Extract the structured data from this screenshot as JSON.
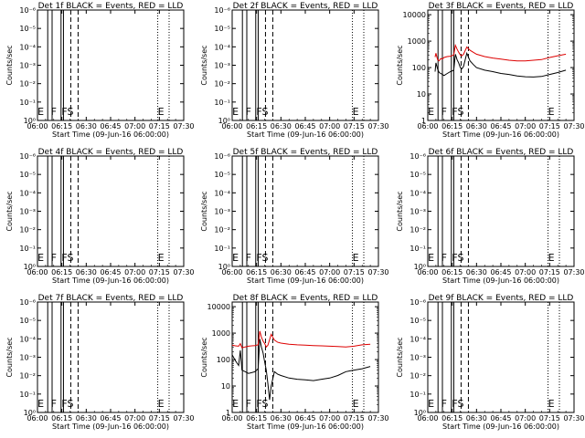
{
  "chart_data": [
    {
      "type": "line",
      "title": "Det 1f BLACK = Events, RED = LLD",
      "ylabel": "Counts/sec",
      "xlabel": "Start Time (09-Jun-16 06:00:00)",
      "x_ticks": [
        "06:00",
        "06:15",
        "06:30",
        "06:45",
        "07:00",
        "07:15",
        "07:30"
      ],
      "y_ticks": [
        "10⁰",
        "10⁻¹",
        "10⁻²",
        "10⁻³",
        "10⁻⁴",
        "10⁻⁵",
        "10⁻⁶"
      ],
      "ylim": [
        1e-06,
        1
      ],
      "log_y": true,
      "markers": {
        "solid": [
          6.3,
          9.0,
          14.5,
          16.0
        ],
        "dashed": [
          20.5,
          25.0
        ],
        "dotted": [
          74.0,
          81.0
        ]
      },
      "marker_labels": [
        {
          "text": "E",
          "x": 2.0
        },
        {
          "text": "F",
          "x": 10.0
        },
        {
          "text": "FS",
          "x": 18.5
        },
        {
          "text": "E",
          "x": 76.0
        }
      ],
      "series": []
    },
    {
      "type": "line",
      "title": "Det 2f BLACK = Events, RED = LLD",
      "ylabel": "Counts/sec",
      "xlabel": "Start Time (09-Jun-16 06:00:00)",
      "x_ticks": [
        "06:00",
        "06:15",
        "06:30",
        "06:45",
        "07:00",
        "07:15",
        "07:30"
      ],
      "y_ticks": [
        "10⁰",
        "10⁻¹",
        "10⁻²",
        "10⁻³",
        "10⁻⁴",
        "10⁻⁵",
        "10⁻⁶"
      ],
      "ylim": [
        1e-06,
        1
      ],
      "log_y": true,
      "markers": {
        "solid": [
          6.3,
          9.0,
          14.5,
          16.0
        ],
        "dashed": [
          20.5,
          25.0
        ],
        "dotted": [
          74.0,
          81.0
        ]
      },
      "marker_labels": [
        {
          "text": "E",
          "x": 2.0
        },
        {
          "text": "F",
          "x": 10.0
        },
        {
          "text": "FS",
          "x": 18.5
        },
        {
          "text": "E",
          "x": 76.0
        }
      ],
      "series": []
    },
    {
      "type": "line",
      "title": "Det 3f BLACK = Events, RED = LLD",
      "ylabel": "Counts/sec",
      "xlabel": "Start Time (09-Jun-16 06:00:00)",
      "x_ticks": [
        "06:00",
        "06:15",
        "06:30",
        "06:45",
        "07:00",
        "07:15",
        "07:30"
      ],
      "y_ticks": [
        "1",
        "10",
        "100",
        "1000",
        "10000"
      ],
      "ylim": [
        1,
        15000
      ],
      "log_y": true,
      "markers": {
        "solid": [
          6.3,
          9.0,
          14.5,
          16.0
        ],
        "dashed": [
          20.5,
          25.0
        ],
        "dotted": [
          74.0,
          81.0
        ]
      },
      "marker_labels": [
        {
          "text": "E",
          "x": 2.0
        },
        {
          "text": "F",
          "x": 10.0
        },
        {
          "text": "FS",
          "x": 18.5
        },
        {
          "text": "E",
          "x": 76.0
        }
      ],
      "series": [
        {
          "color": "#dd0000",
          "x": [
            4.5,
            5,
            6,
            7,
            8,
            9,
            10,
            12,
            14,
            16,
            17,
            18,
            19,
            20,
            21,
            22,
            24,
            26,
            28,
            30,
            35,
            40,
            45,
            50,
            55,
            60,
            65,
            70,
            75,
            80,
            85
          ],
          "y": [
            250,
            350,
            200,
            180,
            220,
            210,
            240,
            260,
            270,
            300,
            700,
            500,
            380,
            300,
            280,
            320,
            600,
            450,
            380,
            320,
            260,
            230,
            210,
            190,
            180,
            180,
            190,
            200,
            240,
            280,
            320
          ]
        },
        {
          "color": "#000000",
          "x": [
            4.5,
            5,
            6,
            7,
            8,
            9,
            10,
            12,
            14,
            16,
            17,
            18,
            19,
            20,
            21,
            22,
            24,
            26,
            28,
            30,
            35,
            40,
            45,
            50,
            55,
            60,
            65,
            70,
            75,
            80,
            85
          ],
          "y": [
            70,
            150,
            90,
            65,
            60,
            55,
            50,
            60,
            70,
            80,
            320,
            200,
            150,
            100,
            90,
            110,
            350,
            180,
            130,
            100,
            80,
            70,
            60,
            55,
            48,
            45,
            44,
            46,
            55,
            65,
            80
          ]
        }
      ]
    },
    {
      "type": "line",
      "title": "Det 4f BLACK = Events, RED = LLD",
      "ylabel": "Counts/sec",
      "xlabel": "Start Time (09-Jun-16 06:00:00)",
      "x_ticks": [
        "06:00",
        "06:15",
        "06:30",
        "06:45",
        "07:00",
        "07:15",
        "07:30"
      ],
      "y_ticks": [
        "10⁰",
        "10⁻¹",
        "10⁻²",
        "10⁻³",
        "10⁻⁴",
        "10⁻⁵",
        "10⁻⁶"
      ],
      "ylim": [
        1e-06,
        1
      ],
      "log_y": true,
      "markers": {
        "solid": [
          6.3,
          9.0,
          14.5,
          16.0
        ],
        "dashed": [
          20.5,
          25.0
        ],
        "dotted": [
          74.0,
          81.0
        ]
      },
      "marker_labels": [
        {
          "text": "E",
          "x": 2.0
        },
        {
          "text": "F",
          "x": 10.0
        },
        {
          "text": "FS",
          "x": 18.5
        },
        {
          "text": "E",
          "x": 76.0
        }
      ],
      "series": []
    },
    {
      "type": "line",
      "title": "Det 5f BLACK = Events, RED = LLD",
      "ylabel": "Counts/sec",
      "xlabel": "Start Time (09-Jun-16 06:00:00)",
      "x_ticks": [
        "06:00",
        "06:15",
        "06:30",
        "06:45",
        "07:00",
        "07:15",
        "07:30"
      ],
      "y_ticks": [
        "10⁰",
        "10⁻¹",
        "10⁻²",
        "10⁻³",
        "10⁻⁴",
        "10⁻⁵",
        "10⁻⁶"
      ],
      "ylim": [
        1e-06,
        1
      ],
      "log_y": true,
      "markers": {
        "solid": [
          6.3,
          9.0,
          14.5,
          16.0
        ],
        "dashed": [
          20.5,
          25.0
        ],
        "dotted": [
          74.0,
          81.0
        ]
      },
      "marker_labels": [
        {
          "text": "E",
          "x": 2.0
        },
        {
          "text": "F",
          "x": 10.0
        },
        {
          "text": "FS",
          "x": 18.5
        },
        {
          "text": "E",
          "x": 76.0
        }
      ],
      "series": []
    },
    {
      "type": "line",
      "title": "Det 6f BLACK = Events, RED = LLD",
      "ylabel": "Counts/sec",
      "xlabel": "Start Time (09-Jun-16 06:00:00)",
      "x_ticks": [
        "06:00",
        "06:15",
        "06:30",
        "06:45",
        "07:00",
        "07:15",
        "07:30"
      ],
      "y_ticks": [
        "10⁰",
        "10⁻¹",
        "10⁻²",
        "10⁻³",
        "10⁻⁴",
        "10⁻⁵",
        "10⁻⁶"
      ],
      "ylim": [
        1e-06,
        1
      ],
      "log_y": true,
      "markers": {
        "solid": [
          6.3,
          9.0,
          14.5,
          16.0
        ],
        "dashed": [
          20.5,
          25.0
        ],
        "dotted": [
          74.0,
          81.0
        ]
      },
      "marker_labels": [
        {
          "text": "E",
          "x": 2.0
        },
        {
          "text": "F",
          "x": 10.0
        },
        {
          "text": "FS",
          "x": 18.5
        },
        {
          "text": "E",
          "x": 76.0
        }
      ],
      "series": []
    },
    {
      "type": "line",
      "title": "Det 7f BLACK = Events, RED = LLD",
      "ylabel": "Counts/sec",
      "xlabel": "Start Time (09-Jun-16 06:00:00)",
      "x_ticks": [
        "06:00",
        "06:15",
        "06:30",
        "06:45",
        "07:00",
        "07:15",
        "07:30"
      ],
      "y_ticks": [
        "10⁰",
        "10⁻¹",
        "10⁻²",
        "10⁻³",
        "10⁻⁴",
        "10⁻⁵",
        "10⁻⁶"
      ],
      "ylim": [
        1e-06,
        1
      ],
      "log_y": true,
      "markers": {
        "solid": [
          6.3,
          9.0,
          14.5,
          16.0
        ],
        "dashed": [
          20.5,
          25.0
        ],
        "dotted": [
          74.0,
          81.0
        ]
      },
      "marker_labels": [
        {
          "text": "E",
          "x": 2.0
        },
        {
          "text": "F",
          "x": 10.0
        },
        {
          "text": "FS",
          "x": 18.5
        },
        {
          "text": "E",
          "x": 76.0
        }
      ],
      "series": []
    },
    {
      "type": "line",
      "title": "Det 8f BLACK = Events, RED = LLD",
      "ylabel": "Counts/sec",
      "xlabel": "Start Time (09-Jun-16 06:00:00)",
      "x_ticks": [
        "06:00",
        "06:15",
        "06:30",
        "06:45",
        "07:00",
        "07:15",
        "07:30"
      ],
      "y_ticks": [
        "1",
        "10",
        "100",
        "1000",
        "10000"
      ],
      "ylim": [
        1,
        15000
      ],
      "log_y": true,
      "markers": {
        "solid": [
          6.3,
          9.0,
          14.5,
          16.0
        ],
        "dashed": [
          20.5,
          25.0
        ],
        "dotted": [
          74.0,
          81.0
        ]
      },
      "marker_labels": [
        {
          "text": "E",
          "x": 2.0
        },
        {
          "text": "F",
          "x": 10.0
        },
        {
          "text": "FS",
          "x": 18.5
        },
        {
          "text": "E",
          "x": 76.0
        }
      ],
      "series": [
        {
          "color": "#dd0000",
          "x": [
            0,
            2,
            4,
            5,
            6,
            8,
            10,
            12,
            14,
            16,
            17,
            18,
            19,
            20,
            21,
            22,
            24,
            26,
            28,
            30,
            35,
            40,
            45,
            50,
            55,
            60,
            65,
            70,
            75,
            80,
            85
          ],
          "y": [
            350,
            330,
            320,
            400,
            280,
            300,
            320,
            330,
            340,
            360,
            1200,
            700,
            500,
            400,
            300,
            350,
            900,
            550,
            450,
            420,
            380,
            360,
            350,
            340,
            330,
            320,
            310,
            300,
            320,
            360,
            380
          ]
        },
        {
          "color": "#000000",
          "x": [
            0,
            2,
            4,
            5,
            6,
            8,
            10,
            12,
            14,
            16,
            17,
            18,
            19,
            20,
            21,
            22,
            23,
            24,
            26,
            28,
            30,
            35,
            40,
            45,
            50,
            55,
            60,
            65,
            70,
            75,
            80,
            85
          ],
          "y": [
            150,
            90,
            60,
            220,
            40,
            35,
            30,
            32,
            35,
            45,
            600,
            300,
            180,
            80,
            40,
            12,
            3,
            10,
            35,
            28,
            25,
            20,
            18,
            17,
            16,
            18,
            20,
            25,
            35,
            40,
            45,
            55
          ]
        }
      ]
    },
    {
      "type": "line",
      "title": "Det 9f BLACK = Events, RED = LLD",
      "ylabel": "Counts/sec",
      "xlabel": "Start Time (09-Jun-16 06:00:00)",
      "x_ticks": [
        "06:00",
        "06:15",
        "06:30",
        "06:45",
        "07:00",
        "07:15",
        "07:30"
      ],
      "y_ticks": [
        "10⁰",
        "10⁻¹",
        "10⁻²",
        "10⁻³",
        "10⁻⁴",
        "10⁻⁵",
        "10⁻⁶"
      ],
      "ylim": [
        1e-06,
        1
      ],
      "log_y": true,
      "markers": {
        "solid": [
          6.3,
          9.0,
          14.5,
          16.0
        ],
        "dashed": [
          20.5,
          25.0
        ],
        "dotted": [
          74.0,
          81.0
        ]
      },
      "marker_labels": [
        {
          "text": "E",
          "x": 2.0
        },
        {
          "text": "F",
          "x": 10.0
        },
        {
          "text": "FS",
          "x": 18.5
        },
        {
          "text": "E",
          "x": 76.0
        }
      ],
      "series": []
    }
  ]
}
